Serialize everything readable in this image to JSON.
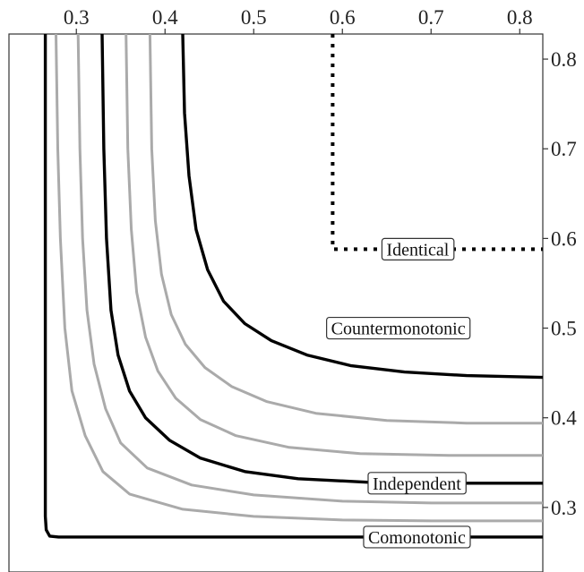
{
  "chart_data": {
    "type": "line",
    "title": "",
    "xlabel": "",
    "ylabel": "",
    "xlim": [
      0.224,
      0.826
    ],
    "ylim": [
      0.228,
      0.828
    ],
    "x_ticks": [
      0.3,
      0.4,
      0.5,
      0.6,
      0.7,
      0.8
    ],
    "x_tick_labels": [
      "0.3",
      "0.4",
      "0.5",
      "0.6",
      "0.7",
      "0.8"
    ],
    "y_ticks": [
      0.3,
      0.4,
      0.5,
      0.6,
      0.7,
      0.8
    ],
    "y_tick_labels": [
      "0.3",
      "0.4",
      "0.5",
      "0.6",
      "0.7",
      "0.8"
    ],
    "x_axis_position": "top",
    "y_axis_position": "right",
    "grid": false,
    "colors": {
      "key": "#000000",
      "intermediate": "#aaaaaa"
    },
    "series": [
      {
        "name": "Comonotonic",
        "style": "solid",
        "color": "#000000",
        "x": [
          0.265,
          0.265,
          0.266,
          0.27,
          0.28,
          0.826
        ],
        "y": [
          0.828,
          0.29,
          0.275,
          0.268,
          0.267,
          0.267
        ]
      },
      {
        "color": "#aaaaaa",
        "style": "solid",
        "x": [
          0.277,
          0.279,
          0.282,
          0.287,
          0.295,
          0.31,
          0.33,
          0.36,
          0.42,
          0.5,
          0.6,
          0.7,
          0.826
        ],
        "y": [
          0.828,
          0.7,
          0.6,
          0.5,
          0.43,
          0.38,
          0.34,
          0.315,
          0.298,
          0.29,
          0.286,
          0.285,
          0.285
        ]
      },
      {
        "color": "#aaaaaa",
        "style": "solid",
        "x": [
          0.302,
          0.304,
          0.307,
          0.312,
          0.32,
          0.333,
          0.35,
          0.38,
          0.43,
          0.5,
          0.6,
          0.7,
          0.826
        ],
        "y": [
          0.828,
          0.7,
          0.6,
          0.52,
          0.46,
          0.41,
          0.372,
          0.344,
          0.325,
          0.314,
          0.307,
          0.305,
          0.305
        ]
      },
      {
        "name": "Independent",
        "style": "solid",
        "color": "#000000",
        "x": [
          0.329,
          0.331,
          0.334,
          0.339,
          0.347,
          0.36,
          0.378,
          0.405,
          0.44,
          0.49,
          0.55,
          0.63,
          0.72,
          0.826
        ],
        "y": [
          0.828,
          0.7,
          0.6,
          0.52,
          0.47,
          0.43,
          0.4,
          0.375,
          0.355,
          0.34,
          0.332,
          0.328,
          0.327,
          0.327
        ]
      },
      {
        "color": "#aaaaaa",
        "style": "solid",
        "x": [
          0.356,
          0.358,
          0.362,
          0.368,
          0.378,
          0.392,
          0.412,
          0.44,
          0.48,
          0.54,
          0.62,
          0.72,
          0.826
        ],
        "y": [
          0.828,
          0.7,
          0.61,
          0.54,
          0.49,
          0.452,
          0.422,
          0.398,
          0.38,
          0.367,
          0.36,
          0.358,
          0.358
        ]
      },
      {
        "color": "#aaaaaa",
        "style": "solid",
        "x": [
          0.383,
          0.385,
          0.389,
          0.396,
          0.407,
          0.423,
          0.445,
          0.475,
          0.515,
          0.57,
          0.65,
          0.74,
          0.826
        ],
        "y": [
          0.828,
          0.7,
          0.62,
          0.56,
          0.515,
          0.482,
          0.456,
          0.435,
          0.418,
          0.405,
          0.397,
          0.394,
          0.394
        ]
      },
      {
        "name": "Countermonotonic",
        "style": "solid",
        "color": "#000000",
        "x": [
          0.42,
          0.422,
          0.427,
          0.435,
          0.448,
          0.466,
          0.49,
          0.52,
          0.56,
          0.61,
          0.67,
          0.74,
          0.826
        ],
        "y": [
          0.828,
          0.74,
          0.67,
          0.61,
          0.565,
          0.53,
          0.505,
          0.486,
          0.47,
          0.458,
          0.451,
          0.447,
          0.445
        ]
      },
      {
        "name": "Identical",
        "style": "dotted",
        "color": "#000000",
        "x": [
          0.589,
          0.589,
          0.826
        ],
        "y": [
          0.828,
          0.588,
          0.588
        ]
      }
    ],
    "annotations": [
      {
        "text": "Identical",
        "x": 0.685,
        "y": 0.588
      },
      {
        "text": "Countermonotonic",
        "x": 0.663,
        "y": 0.5
      },
      {
        "text": "Independent",
        "x": 0.684,
        "y": 0.327
      },
      {
        "text": "Comonotonic",
        "x": 0.684,
        "y": 0.267
      }
    ]
  }
}
